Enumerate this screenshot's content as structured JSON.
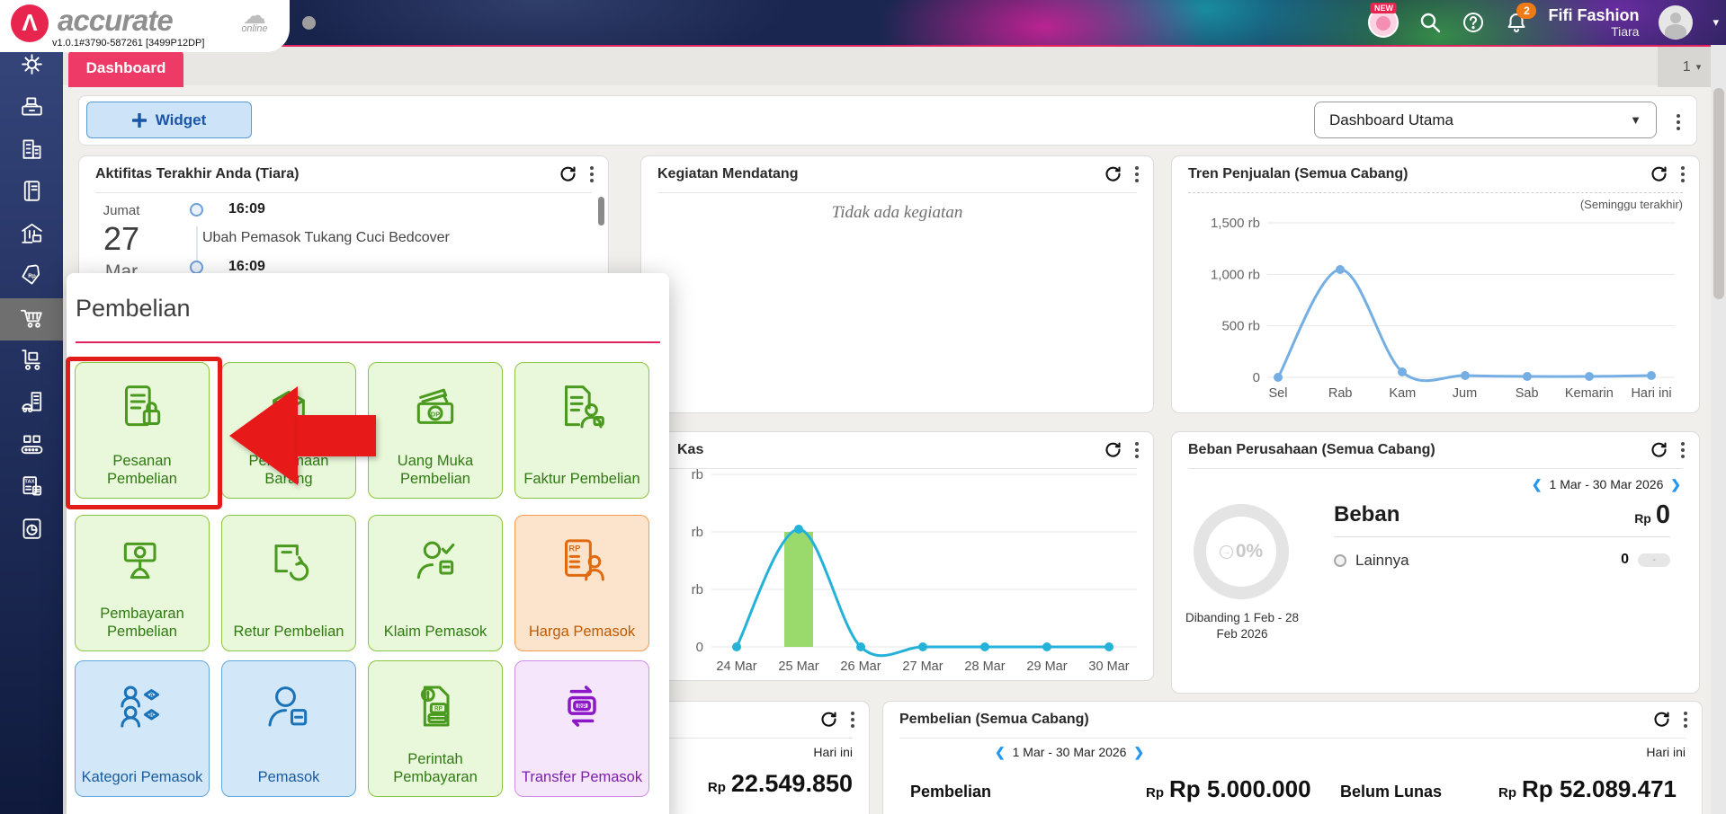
{
  "header": {
    "brand": "accurate",
    "online_label": "online",
    "version": "v1.0.1#3790-587261 [3499P12DP]",
    "new_badge": "NEW",
    "notification_count": "2",
    "company": "Fifi Fashion",
    "user": "Tiara"
  },
  "tabbar": {
    "active_tab": "Dashboard",
    "pager": "1"
  },
  "toolbar": {
    "widget_button": "Widget",
    "dashboard_select": "Dashboard Utama"
  },
  "sidebar": {
    "items": [
      {
        "icon": "gear-icon"
      },
      {
        "icon": "cash-register-icon"
      },
      {
        "icon": "buildings-icon"
      },
      {
        "icon": "book-icon"
      },
      {
        "icon": "warehouse-icon"
      },
      {
        "icon": "price-tag-rp-icon"
      },
      {
        "icon": "cart-icon",
        "active": true
      },
      {
        "icon": "trolley-icon"
      },
      {
        "icon": "asset-building-icon"
      },
      {
        "icon": "conveyor-icon"
      },
      {
        "icon": "tax-document-icon"
      },
      {
        "icon": "pie-report-icon"
      }
    ]
  },
  "widgets": {
    "activity": {
      "title": "Aktifitas Terakhir Anda (Tiara)",
      "day": "Jumat",
      "date": "27",
      "month": "Mar",
      "entries": [
        {
          "time": "16:09",
          "text": "Ubah Pemasok Tukang Cuci Bedcover"
        },
        {
          "time": "16:09",
          "text": ""
        }
      ]
    },
    "upcoming": {
      "title": "Kegiatan Mendatang",
      "empty_text": "Tidak ada kegiatan"
    },
    "sales_trend": {
      "title": "Tren Penjualan (Semua Cabang)",
      "subtitle": "(Seminggu terakhir)"
    },
    "kas": {
      "title": "Kas"
    },
    "expense": {
      "title": "Beban Perusahaan (Semua Cabang)",
      "date_range": "1 Mar - 30 Mar 2026",
      "donut_pct": "0%",
      "heading": "Beban",
      "currency": "Rp",
      "amount": "0",
      "row_label": "Lainnya",
      "row_value": "0",
      "row_pill": "-",
      "compare_note": "Dibanding 1 Feb - 28 Feb 2026"
    },
    "bottom_left": {
      "period": "Hari ini",
      "currency": "Rp",
      "amount": "22.549.850"
    },
    "purchase": {
      "title": "Pembelian (Semua Cabang)",
      "date_range": "1 Mar - 30 Mar 2026",
      "period": "Hari ini",
      "stats": [
        {
          "label": "Pembelian",
          "currency": "Rp",
          "value": "Rp 5.000.000"
        },
        {
          "label": "Belum Lunas",
          "currency": "Rp",
          "value": "Rp 52.089.471"
        }
      ]
    }
  },
  "popup": {
    "title": "Pembelian",
    "tiles": [
      {
        "label": "Pesanan Pembelian",
        "icon": "purchase-order-icon",
        "theme": "green",
        "highlighted": true
      },
      {
        "label": "Penerimaan Barang",
        "icon": "receive-goods-icon",
        "theme": "green"
      },
      {
        "label": "Uang Muka Pembelian",
        "icon": "down-payment-icon",
        "theme": "green"
      },
      {
        "label": "Faktur Pembelian",
        "icon": "purchase-invoice-icon",
        "theme": "green"
      },
      {
        "label": "Pembayaran Pembelian",
        "icon": "purchase-payment-icon",
        "theme": "green"
      },
      {
        "label": "Retur Pembelian",
        "icon": "purchase-return-icon",
        "theme": "green"
      },
      {
        "label": "Klaim Pemasok",
        "icon": "supplier-claim-icon",
        "theme": "green"
      },
      {
        "label": "Harga Pemasok",
        "icon": "supplier-price-icon",
        "theme": "orange"
      },
      {
        "label": "Kategori Pemasok",
        "icon": "supplier-category-icon",
        "theme": "blue"
      },
      {
        "label": "Pemasok",
        "icon": "supplier-icon",
        "theme": "blue"
      },
      {
        "label": "Perintah Pembayaran",
        "icon": "payment-order-icon",
        "theme": "green"
      },
      {
        "label": "Transfer Pemasok",
        "icon": "supplier-transfer-icon",
        "theme": "purple"
      }
    ]
  },
  "chart_data": [
    {
      "id": "sales_trend",
      "type": "line",
      "title": "Tren Penjualan (Semua Cabang)",
      "subtitle": "(Seminggu terakhir)",
      "categories": [
        "Sel",
        "Rab",
        "Kam",
        "Jum",
        "Sab",
        "Kemarin",
        "Hari ini"
      ],
      "values": [
        0,
        1050,
        50,
        20,
        10,
        10,
        20
      ],
      "unit": "rb",
      "ytick_labels": [
        "1,500 rb",
        "1,000 rb",
        "500 rb",
        "0"
      ],
      "ylim": [
        0,
        1500
      ],
      "line_color": "#74aee3",
      "grid": true,
      "legend": "none"
    },
    {
      "id": "kas",
      "type": "line+bar",
      "title": "Kas",
      "categories": [
        "24 Mar",
        "25 Mar",
        "26 Mar",
        "27 Mar",
        "28 Mar",
        "29 Mar",
        "30 Mar"
      ],
      "values": [
        0,
        1020,
        0,
        0,
        0,
        0,
        0
      ],
      "bar": {
        "category": "25 Mar",
        "index": 1,
        "value": 1000,
        "color": "#9ad96c"
      },
      "unit": "rb",
      "ytick_labels": [
        "rb",
        "rb",
        "rb",
        "0"
      ],
      "ylim": [
        0,
        1500
      ],
      "line_color": "#25b2d8",
      "grid": true,
      "legend": "none"
    }
  ],
  "colors": {
    "accent_pink": "#ee3a67",
    "divider_pink": "#e0235c",
    "highlight_red": "#e21b1b",
    "sidebar_navy": "#22305e",
    "tile_green_bg": "#e9f7da",
    "tile_orange_bg": "#fce4cc",
    "tile_blue_bg": "#d2e7f8",
    "tile_purple_bg": "#f6e6fc",
    "kas_line": "#25b2d8",
    "kas_bar": "#9ad96c",
    "trend_line": "#74aee3"
  }
}
